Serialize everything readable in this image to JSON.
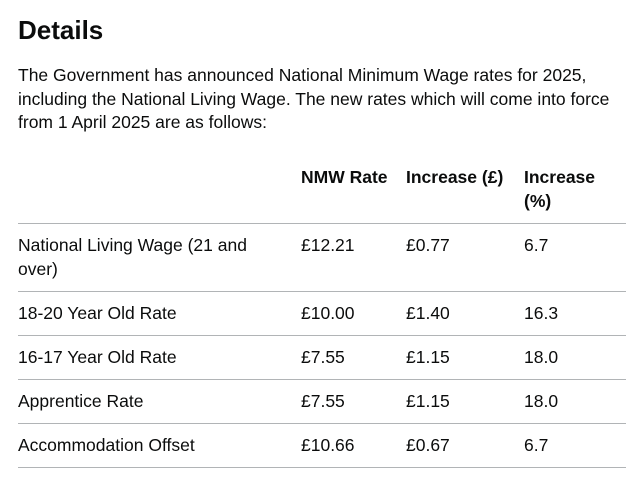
{
  "heading": "Details",
  "intro": "The Government has announced National Minimum Wage rates for 2025, including the National Living Wage. The new rates which will come into force from 1 April 2025 are as follows:",
  "table": {
    "headers": [
      "",
      "NMW Rate",
      "Increase (£)",
      "Increase (%)"
    ],
    "rows": [
      [
        "National Living Wage (21 and over)",
        "£12.21",
        "£0.77",
        "6.7"
      ],
      [
        "18-20 Year Old Rate",
        "£10.00",
        "£1.40",
        "16.3"
      ],
      [
        "16-17 Year Old Rate",
        "£7.55",
        "£1.15",
        "18.0"
      ],
      [
        "Apprentice Rate",
        "£7.55",
        "£1.15",
        "18.0"
      ],
      [
        "Accommodation Offset",
        "£10.66",
        "£0.67",
        "6.7"
      ]
    ]
  }
}
